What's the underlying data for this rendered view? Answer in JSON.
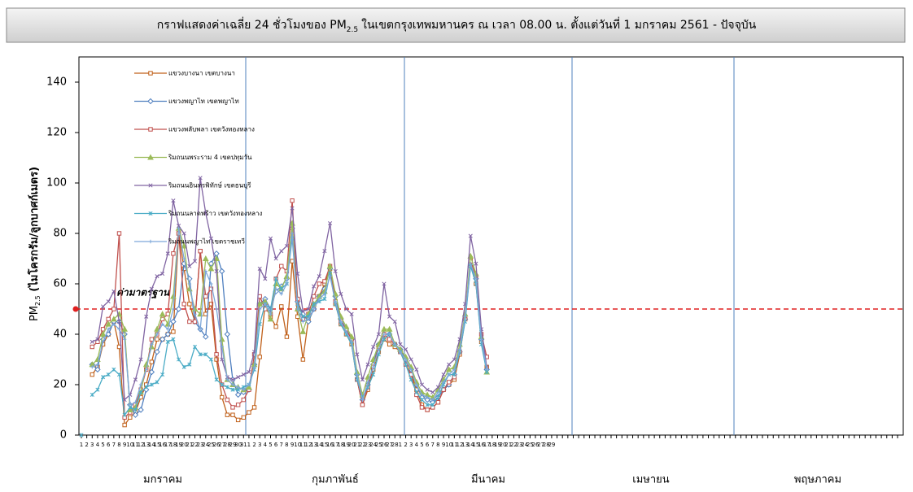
{
  "chart_data": {
    "type": "line",
    "title": "กราฟแสดงค่าเฉลี่ย 24 ชั่วโมงของ PM",
    "title_sub": "2.5",
    "title_rest": "ในเขตกรุงเทพมหานคร ณ เวลา 08.00 น. ตั้งแต่วันที่ 1 มกราคม 2561 - ปัจจุบัน",
    "ylabel": "PM",
    "ylabel_sub": "2.5",
    "ylabel_rest": " (ไมโครกรัม/ลูกบาศก์เมตร)",
    "months": [
      "มกราคม",
      "กุมภาพันธ์",
      "มีนาคม",
      "เมษายน",
      "พฤษภาคม"
    ],
    "standard": {
      "label": "ค่ามาตรฐาน",
      "value": 50,
      "color": "#e02020"
    },
    "ylim": [
      0,
      150
    ],
    "yticks": [
      0,
      20,
      40,
      60,
      80,
      100,
      120,
      140
    ],
    "categories": [
      "1",
      "2",
      "3",
      "4",
      "5",
      "6",
      "7",
      "8",
      "9",
      "10",
      "11",
      "12",
      "13",
      "14",
      "15",
      "16",
      "17",
      "18",
      "19",
      "20",
      "21",
      "22",
      "23",
      "24",
      "25",
      "26",
      "27",
      "28",
      "29",
      "30",
      "31",
      "1",
      "2",
      "3",
      "4",
      "5",
      "6",
      "7",
      "8",
      "9",
      "10",
      "11",
      "12",
      "13",
      "14",
      "15",
      "16",
      "17",
      "18",
      "19",
      "20",
      "21",
      "22",
      "23",
      "24",
      "25",
      "26",
      "27",
      "28",
      "1",
      "2",
      "3",
      "4",
      "5",
      "6",
      "7",
      "8",
      "9",
      "10",
      "11",
      "12",
      "13",
      "14",
      "15",
      "16",
      "17",
      "18",
      "19",
      "20",
      "21",
      "22",
      "23",
      "24",
      "25",
      "26",
      "27",
      "28",
      "29"
    ],
    "series": [
      {
        "name": "แขวงบางนา เขตบางนา",
        "color": "#c0601a",
        "marker": "square",
        "values": [
          null,
          null,
          24,
          27,
          36,
          40,
          45,
          35,
          4,
          7,
          9,
          15,
          20,
          29,
          38,
          38,
          40,
          41,
          80,
          66,
          52,
          45,
          73,
          48,
          52,
          30,
          15,
          8,
          8,
          6,
          7,
          9,
          11,
          31,
          52,
          47,
          43,
          51,
          39,
          69,
          47,
          30,
          46,
          50,
          55,
          60,
          66,
          52,
          44,
          40,
          36,
          22,
          12,
          18,
          26,
          33,
          38,
          36,
          35,
          33,
          30,
          25,
          18,
          12,
          10,
          11,
          13,
          18,
          20,
          22,
          32,
          46,
          70,
          60,
          37,
          27,
          null,
          null,
          null,
          null,
          null,
          null,
          null,
          null,
          null,
          null,
          null,
          null
        ]
      },
      {
        "name": "แขวงพญาไท เขตพญาไท",
        "color": "#4f7fbf",
        "marker": "diamond",
        "values": [
          null,
          null,
          28,
          26,
          38,
          40,
          45,
          45,
          40,
          12,
          8,
          10,
          18,
          25,
          33,
          38,
          40,
          45,
          50,
          68,
          62,
          45,
          42,
          39,
          68,
          72,
          65,
          40,
          22,
          16,
          17,
          18,
          28,
          52,
          54,
          50,
          57,
          59,
          62,
          82,
          53,
          48,
          45,
          50,
          55,
          58,
          66,
          55,
          46,
          42,
          38,
          24,
          14,
          20,
          28,
          36,
          40,
          40,
          36,
          34,
          30,
          26,
          20,
          15,
          14,
          13,
          15,
          18,
          20,
          24,
          33,
          46,
          67,
          62,
          38,
          26,
          null,
          null,
          null,
          null,
          null,
          null,
          null,
          null,
          null,
          null,
          null,
          null
        ]
      },
      {
        "name": "แขวงพลับพลา เขตวังทองหลาง",
        "color": "#c0504d",
        "marker": "square",
        "values": [
          null,
          null,
          35,
          37,
          42,
          46,
          50,
          80,
          7,
          9,
          12,
          18,
          26,
          38,
          40,
          46,
          48,
          72,
          80,
          52,
          45,
          45,
          73,
          55,
          58,
          32,
          20,
          14,
          11,
          12,
          14,
          18,
          32,
          55,
          50,
          48,
          62,
          67,
          65,
          93,
          54,
          46,
          48,
          55,
          60,
          61,
          67,
          53,
          45,
          42,
          38,
          22,
          12,
          19,
          27,
          35,
          40,
          38,
          36,
          33,
          28,
          24,
          16,
          11,
          10,
          11,
          13,
          18,
          21,
          23,
          33,
          46,
          69,
          63,
          40,
          31,
          null,
          null,
          null,
          null,
          null,
          null,
          null,
          null,
          null,
          null,
          null,
          null
        ]
      },
      {
        "name": "ริมถนนพระราม 4 เขตปทุมวัน",
        "color": "#9bbb59",
        "marker": "triangle",
        "values": [
          null,
          null,
          28,
          30,
          40,
          44,
          46,
          48,
          42,
          10,
          11,
          17,
          28,
          35,
          42,
          48,
          44,
          55,
          82,
          75,
          58,
          50,
          48,
          70,
          66,
          70,
          38,
          22,
          20,
          19,
          18,
          19,
          28,
          52,
          53,
          46,
          60,
          58,
          63,
          84,
          50,
          41,
          48,
          52,
          55,
          57,
          67,
          56,
          47,
          43,
          39,
          25,
          16,
          23,
          30,
          36,
          42,
          42,
          36,
          34,
          31,
          27,
          21,
          17,
          16,
          15,
          18,
          22,
          26,
          27,
          36,
          48,
          71,
          64,
          39,
          25,
          null,
          null,
          null,
          null,
          null,
          null,
          null,
          null,
          null,
          null,
          null,
          null
        ]
      },
      {
        "name": "ริมถนนอินทรพิทักษ์ เขตธนบุรี",
        "color": "#8064a2",
        "marker": "x",
        "values": [
          null,
          null,
          37,
          38,
          51,
          53,
          57,
          45,
          14,
          16,
          22,
          30,
          47,
          58,
          63,
          64,
          72,
          93,
          83,
          80,
          67,
          69,
          102,
          88,
          78,
          65,
          30,
          23,
          22,
          23,
          24,
          25,
          33,
          66,
          62,
          78,
          70,
          73,
          75,
          90,
          64,
          49,
          50,
          59,
          63,
          73,
          84,
          65,
          56,
          50,
          48,
          32,
          22,
          28,
          35,
          40,
          60,
          47,
          45,
          36,
          34,
          30,
          26,
          20,
          18,
          17,
          19,
          24,
          28,
          30,
          38,
          52,
          79,
          68,
          42,
          27,
          null,
          null,
          null,
          null,
          null,
          null,
          null,
          null,
          null,
          null,
          null,
          null
        ]
      },
      {
        "name": "ริมถนนลาดพร้าว เขตวังทองหลาง",
        "color": "#4bacc6",
        "marker": "star",
        "values": [
          0,
          null,
          16,
          18,
          23,
          24,
          26,
          24,
          8,
          11,
          10,
          17,
          19,
          20,
          21,
          24,
          37,
          38,
          30,
          27,
          28,
          35,
          32,
          32,
          30,
          22,
          20,
          19,
          18,
          18,
          19,
          20,
          26,
          44,
          52,
          50,
          62,
          58,
          60,
          78,
          52,
          47,
          47,
          52,
          53,
          54,
          64,
          52,
          44,
          40,
          36,
          22,
          15,
          19,
          24,
          32,
          38,
          40,
          36,
          33,
          28,
          22,
          17,
          14,
          12,
          12,
          15,
          20,
          24,
          24,
          33,
          45,
          67,
          60,
          36,
          25,
          null,
          null,
          null,
          null,
          null,
          null,
          null,
          null,
          null,
          null,
          null,
          null
        ]
      },
      {
        "name": "ริมถนนพญาไท เขตราชเทวี",
        "color": "#7da7d9",
        "marker": "plus",
        "values": [
          null,
          null,
          27,
          28,
          37,
          42,
          44,
          42,
          38,
          12,
          13,
          20,
          26,
          36,
          40,
          44,
          42,
          50,
          82,
          70,
          60,
          48,
          42,
          65,
          60,
          50,
          35,
          22,
          20,
          19,
          18,
          20,
          27,
          50,
          52,
          48,
          58,
          56,
          60,
          80,
          50,
          45,
          46,
          50,
          54,
          56,
          63,
          53,
          45,
          41,
          37,
          24,
          14,
          21,
          27,
          34,
          40,
          40,
          36,
          33,
          30,
          26,
          20,
          16,
          15,
          14,
          17,
          21,
          24,
          26,
          34,
          47,
          68,
          62,
          38,
          26,
          null,
          null,
          null,
          null,
          null,
          null,
          null,
          null,
          null,
          null,
          null,
          null
        ]
      }
    ]
  }
}
